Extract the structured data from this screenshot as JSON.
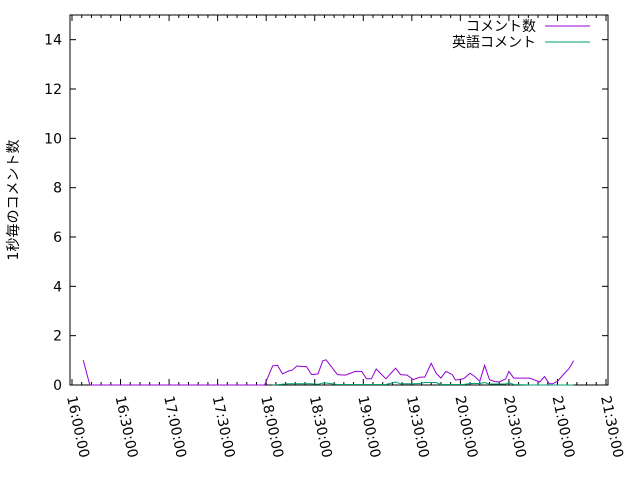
{
  "chart_data": {
    "type": "line",
    "title": "",
    "xlabel": "",
    "ylabel": "1秒毎のコメント数",
    "xlim": [
      "16:00:00",
      "21:30:00"
    ],
    "ylim": [
      0,
      15
    ],
    "x_ticks": [
      "16:00:00",
      "16:30:00",
      "17:00:00",
      "17:30:00",
      "18:00:00",
      "18:30:00",
      "19:00:00",
      "19:30:00",
      "20:00:00",
      "20:30:00",
      "21:00:00",
      "21:30:00"
    ],
    "y_ticks": [
      0,
      2,
      4,
      6,
      8,
      10,
      12,
      14
    ],
    "grid": false,
    "legend_position": "top-right",
    "series": [
      {
        "name": "コメント数",
        "color": "#9400d3",
        "points": [
          [
            "16:07",
            1.0
          ],
          [
            "16:11",
            0
          ],
          [
            "17:54",
            0
          ],
          [
            "17:59",
            0
          ],
          [
            "18:04",
            0.78
          ],
          [
            "18:07",
            0.8
          ],
          [
            "18:10",
            0.45
          ],
          [
            "18:14",
            0.57
          ],
          [
            "18:16",
            0.6
          ],
          [
            "18:19",
            0.77
          ],
          [
            "18:25",
            0.74
          ],
          [
            "18:28",
            0.42
          ],
          [
            "18:32",
            0.45
          ],
          [
            "18:35",
            0.98
          ],
          [
            "18:37",
            1.02
          ],
          [
            "18:44",
            0.42
          ],
          [
            "18:49",
            0.4
          ],
          [
            "18:55",
            0.55
          ],
          [
            "18:59",
            0.55
          ],
          [
            "19:02",
            0.25
          ],
          [
            "19:05",
            0.25
          ],
          [
            "19:08",
            0.65
          ],
          [
            "19:14",
            0.25
          ],
          [
            "19:20",
            0.68
          ],
          [
            "19:23",
            0.42
          ],
          [
            "19:27",
            0.4
          ],
          [
            "19:31",
            0.22
          ],
          [
            "19:35",
            0.32
          ],
          [
            "19:38",
            0.32
          ],
          [
            "19:42",
            0.88
          ],
          [
            "19:45",
            0.48
          ],
          [
            "19:48",
            0.28
          ],
          [
            "19:51",
            0.55
          ],
          [
            "19:55",
            0.42
          ],
          [
            "19:57",
            0.2
          ],
          [
            "20:02",
            0.25
          ],
          [
            "20:06",
            0.48
          ],
          [
            "20:09",
            0.34
          ],
          [
            "20:12",
            0.15
          ],
          [
            "20:15",
            0.8
          ],
          [
            "20:18",
            0.22
          ],
          [
            "20:21",
            0.14
          ],
          [
            "20:24",
            0.12
          ],
          [
            "20:28",
            0.25
          ],
          [
            "20:30",
            0.55
          ],
          [
            "20:33",
            0.28
          ],
          [
            "20:43",
            0.28
          ],
          [
            "20:49",
            0.12
          ],
          [
            "20:52",
            0.34
          ],
          [
            "20:55",
            0.05
          ],
          [
            "20:57",
            0.05
          ],
          [
            "21:00",
            0.15
          ],
          [
            "21:04",
            0.45
          ],
          [
            "21:07",
            0.65
          ],
          [
            "21:10",
            0.98
          ]
        ]
      },
      {
        "name": "英語コメント",
        "color": "#009e73",
        "points": [
          [
            "18:04",
            0
          ],
          [
            "18:10",
            0.03
          ],
          [
            "18:14",
            0.05
          ],
          [
            "18:28",
            0.05
          ],
          [
            "18:32",
            0.03
          ],
          [
            "18:35",
            0.08
          ],
          [
            "18:37",
            0.08
          ],
          [
            "18:44",
            0.02
          ],
          [
            "19:14",
            0.02
          ],
          [
            "19:20",
            0.12
          ],
          [
            "19:23",
            0.05
          ],
          [
            "19:31",
            0.05
          ],
          [
            "19:35",
            0.06
          ],
          [
            "19:38",
            0.1
          ],
          [
            "19:45",
            0.1
          ],
          [
            "19:48",
            0.02
          ],
          [
            "20:02",
            0.02
          ],
          [
            "20:06",
            0.06
          ],
          [
            "20:12",
            0.06
          ],
          [
            "20:15",
            0.1
          ],
          [
            "20:18",
            0.04
          ],
          [
            "20:28",
            0.04
          ],
          [
            "20:30",
            0.1
          ],
          [
            "20:33",
            0.02
          ],
          [
            "20:43",
            0
          ],
          [
            "21:10",
            0
          ]
        ]
      }
    ]
  }
}
